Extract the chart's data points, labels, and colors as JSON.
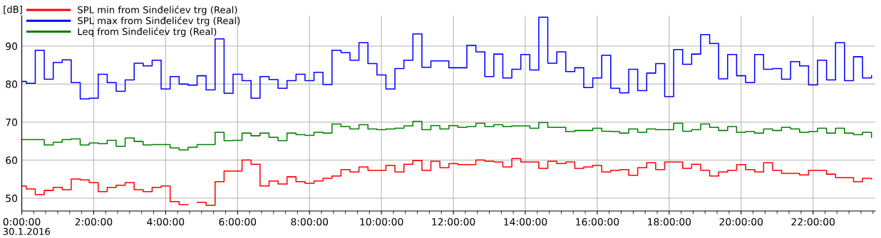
{
  "chart_data": {
    "type": "step",
    "ylabel": "[dB]",
    "annotations": [
      "30.1.2016"
    ],
    "x": [
      0,
      0.125,
      0.375,
      0.625,
      0.875,
      1.125,
      1.375,
      1.625,
      1.875,
      2.125,
      2.375,
      2.625,
      2.875,
      3.125,
      3.375,
      3.625,
      3.875,
      4.125,
      4.375,
      4.625,
      4.875,
      5.125,
      5.375,
      5.625,
      5.875,
      6.125,
      6.375,
      6.625,
      6.875,
      7.125,
      7.375,
      7.625,
      7.875,
      8.125,
      8.375,
      8.625,
      8.875,
      9.125,
      9.375,
      9.625,
      9.875,
      10.125,
      10.375,
      10.625,
      10.875,
      11.125,
      11.375,
      11.625,
      11.875,
      12.125,
      12.375,
      12.625,
      12.875,
      13.125,
      13.375,
      13.625,
      13.875,
      14.125,
      14.375,
      14.625,
      14.875,
      15.125,
      15.375,
      15.625,
      15.875,
      16.125,
      16.375,
      16.625,
      16.875,
      17.125,
      17.375,
      17.625,
      17.875,
      18.125,
      18.375,
      18.625,
      18.875,
      19.125,
      19.375,
      19.625,
      19.875,
      20.125,
      20.375,
      20.625,
      20.875,
      21.125,
      21.375,
      21.625,
      21.875,
      22.125,
      22.375,
      22.625,
      22.875,
      23.125,
      23.375,
      23.625
    ],
    "series": [
      {
        "name": "SPL min from Sinđelićev trg (Real)",
        "color": "#ff0000",
        "values": [
          53.2,
          52.4,
          50.9,
          52.0,
          52.8,
          52.2,
          55.0,
          54.8,
          54.1,
          51.7,
          52.8,
          53.4,
          54.1,
          52.2,
          51.7,
          52.8,
          53.2,
          49.1,
          48.3,
          null,
          48.9,
          48.1,
          54.3,
          57.1,
          57.1,
          60.0,
          58.9,
          53.2,
          54.5,
          53.7,
          55.6,
          54.3,
          53.9,
          54.5,
          55.2,
          55.8,
          57.5,
          56.9,
          58.2,
          57.3,
          57.3,
          58.6,
          56.9,
          58.9,
          59.9,
          57.3,
          59.7,
          58.0,
          59.1,
          58.8,
          58.8,
          60.0,
          59.7,
          59.5,
          58.2,
          60.4,
          59.5,
          59.5,
          57.8,
          59.7,
          59.1,
          59.5,
          57.8,
          58.2,
          58.6,
          56.9,
          57.3,
          57.5,
          56.0,
          58.0,
          59.3,
          57.5,
          59.5,
          59.5,
          57.8,
          58.9,
          57.3,
          55.8,
          56.9,
          57.3,
          58.8,
          57.5,
          56.9,
          59.3,
          57.3,
          56.5,
          56.5,
          56.1,
          57.3,
          57.3,
          56.3,
          55.4,
          55.4,
          54.3,
          55.2,
          55.0
        ]
      },
      {
        "name": "SPL max from Sinđelićev trg (Real)",
        "color": "#0000ff",
        "values": [
          80.7,
          80.2,
          88.9,
          81.3,
          85.7,
          86.4,
          80.4,
          76.1,
          76.3,
          82.6,
          80.4,
          78.1,
          81.1,
          85.5,
          84.8,
          86.3,
          78.7,
          82.0,
          80.0,
          79.7,
          82.2,
          78.5,
          91.9,
          77.6,
          82.6,
          80.9,
          76.3,
          82.0,
          81.2,
          78.9,
          80.9,
          82.6,
          80.9,
          83.1,
          79.9,
          88.9,
          88.3,
          86.3,
          90.9,
          85.4,
          82.4,
          78.7,
          84.1,
          86.3,
          93.2,
          84.4,
          86.1,
          86.1,
          84.3,
          84.3,
          90.2,
          88.5,
          82.0,
          87.9,
          81.6,
          83.9,
          87.8,
          83.7,
          97.6,
          85.5,
          88.5,
          83.3,
          84.3,
          79.1,
          81.6,
          87.6,
          78.9,
          77.7,
          83.9,
          78.3,
          82.9,
          85.4,
          76.7,
          89.1,
          85.2,
          87.9,
          93.0,
          90.7,
          81.4,
          87.8,
          82.2,
          80.4,
          87.8,
          83.9,
          84.1,
          81.3,
          85.9,
          84.8,
          79.8,
          86.3,
          81.1,
          90.9,
          80.9,
          87.2,
          81.6,
          82.2
        ]
      },
      {
        "name": "Leq from Sinđelićev trg (Real)",
        "color": "#008000",
        "values": [
          65.4,
          65.4,
          65.4,
          64.0,
          64.7,
          65.4,
          65.6,
          64.0,
          64.5,
          64.3,
          65.2,
          63.6,
          65.8,
          64.9,
          64.0,
          64.1,
          64.1,
          63.2,
          62.7,
          63.4,
          64.1,
          64.1,
          67.3,
          65.1,
          65.2,
          67.1,
          66.4,
          67.1,
          66.0,
          65.1,
          67.1,
          66.7,
          66.5,
          67.3,
          67.1,
          69.5,
          68.8,
          68.2,
          69.3,
          68.2,
          68.0,
          68.2,
          68.4,
          69.0,
          70.2,
          68.0,
          69.1,
          68.2,
          69.1,
          68.6,
          68.8,
          69.7,
          68.8,
          69.3,
          68.8,
          69.0,
          69.0,
          68.4,
          69.9,
          68.6,
          68.6,
          67.5,
          67.8,
          67.8,
          68.4,
          67.6,
          67.5,
          67.1,
          68.2,
          67.3,
          68.2,
          68.0,
          68.0,
          69.7,
          67.6,
          68.0,
          69.5,
          68.6,
          67.8,
          68.8,
          67.3,
          67.5,
          67.1,
          68.2,
          67.8,
          68.6,
          68.2,
          67.3,
          67.5,
          68.4,
          67.1,
          68.4,
          67.1,
          66.7,
          67.3,
          66.0
        ]
      }
    ],
    "xlim": [
      0,
      23.73
    ],
    "xticks": [
      {
        "value": 0,
        "label": "0:00:00"
      },
      {
        "value": 2,
        "label": "2:00:00"
      },
      {
        "value": 4,
        "label": "4:00:00"
      },
      {
        "value": 6,
        "label": "6:00:00"
      },
      {
        "value": 8,
        "label": "8:00:00"
      },
      {
        "value": 10,
        "label": "10:00:00"
      },
      {
        "value": 12,
        "label": "12:00:00"
      },
      {
        "value": 14,
        "label": "14:00:00"
      },
      {
        "value": 16,
        "label": "16:00:00"
      },
      {
        "value": 18,
        "label": "18:00:00"
      },
      {
        "value": 20,
        "label": "20:00:00"
      },
      {
        "value": 22,
        "label": "22:00:00"
      }
    ],
    "ylim": [
      46.6,
      98
    ],
    "yticks": [
      50,
      60,
      70,
      80,
      90
    ],
    "grid": true,
    "legend": "top left"
  }
}
